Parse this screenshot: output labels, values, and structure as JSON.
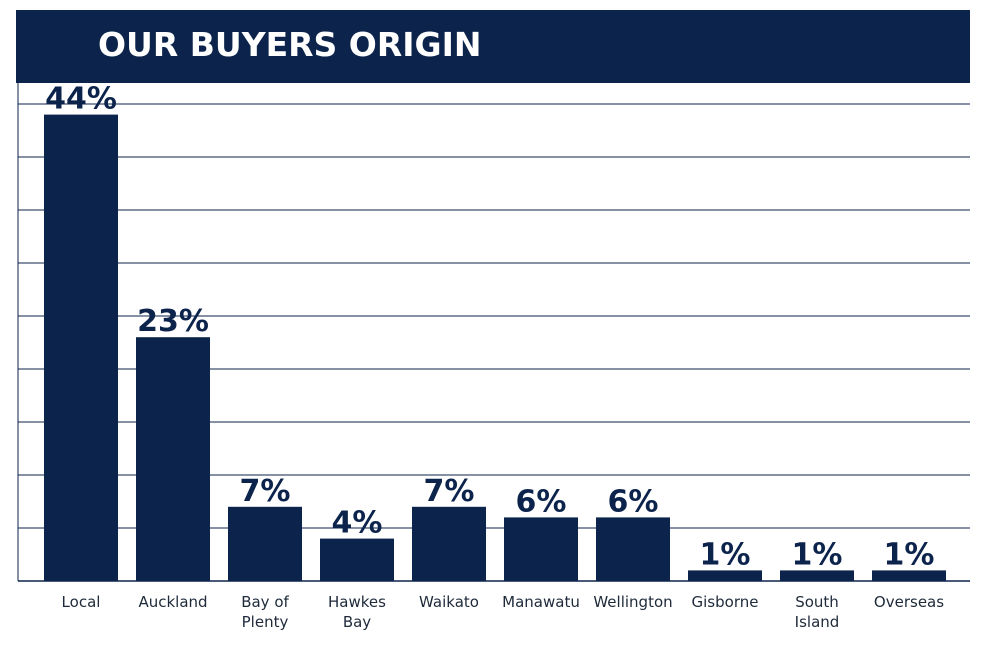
{
  "title": "OUR BUYERS ORIGIN",
  "colors": {
    "bar": "#0c234b",
    "banner": "#0c234b",
    "grid": "#0c234b",
    "label": "#1e2a3a"
  },
  "chart_data": {
    "type": "bar",
    "title": "OUR BUYERS ORIGIN",
    "categories": [
      "Local",
      "Auckland",
      "Bay of\nPlenty",
      "Hawkes\nBay",
      "Waikato",
      "Manawatu",
      "Wellington",
      "Gisborne",
      "South\nIsland",
      "Overseas"
    ],
    "values": [
      44,
      23,
      7,
      4,
      7,
      6,
      6,
      1,
      1,
      1
    ],
    "value_labels": [
      "44%",
      "23%",
      "7%",
      "4%",
      "7%",
      "6%",
      "6%",
      "1%",
      "1%",
      "1%"
    ],
    "xlabel": "",
    "ylabel": "",
    "ylim": [
      0,
      45
    ],
    "grid": true,
    "legend": "none"
  }
}
